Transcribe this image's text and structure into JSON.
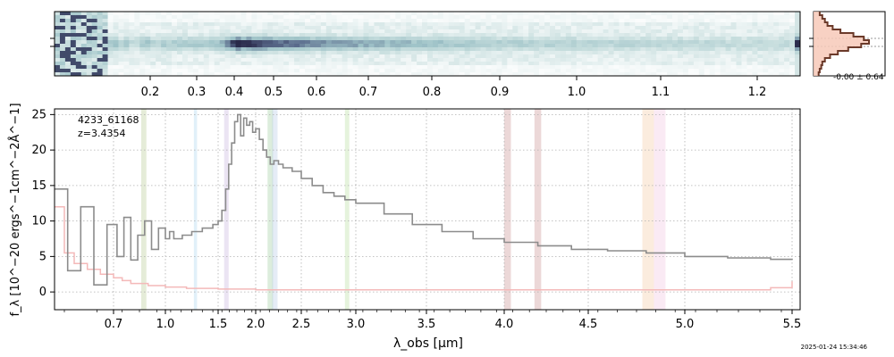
{
  "timestamp": "2025-01-24 15:34:46",
  "chart_data": [
    {
      "type": "heatmap",
      "panel": "2D spectrum",
      "colormap": [
        "#ffffff",
        "#c9dfdf",
        "#9fc3c8",
        "#5a6b8c",
        "#1c1838"
      ],
      "trace_rows": "center",
      "top_axis_ticks": [
        "0.2",
        "0.3",
        "0.4",
        "0.5",
        "0.6",
        "0.7",
        "0.8",
        "0.9",
        "1.0",
        "1.1",
        "1.2"
      ]
    },
    {
      "type": "line",
      "panel": "spatial profile",
      "annotation": "-0.00 ± 0.64",
      "colors": {
        "fill": "#f7c9b8",
        "line": "#6b3a2a"
      }
    },
    {
      "type": "line",
      "panel": "1D spectrum",
      "object_id": "4233_61168",
      "redshift_label": "z=3.4354",
      "xlabel": "λ_obs [μm]",
      "ylabel": "f_λ [10^−20 ergs^−1cm^−2Å^−1]",
      "x_scale": "nonlinear (pixel grid)",
      "x_ticks": [
        "0.7",
        "1.0",
        "1.5",
        "2.0",
        "2.5",
        "3.0",
        "3.5",
        "4.0",
        "4.5",
        "5.0",
        "5.5"
      ],
      "x_tick_values": [
        0.7,
        1.0,
        1.5,
        2.0,
        2.5,
        3.0,
        3.5,
        4.0,
        4.5,
        5.0,
        5.5
      ],
      "xlim": [
        0.52,
        5.52
      ],
      "y_ticks": [
        "0",
        "5",
        "10",
        "15",
        "20",
        "25"
      ],
      "ylim": [
        -2.5,
        25.8
      ],
      "grid": true,
      "series": [
        {
          "role": "flux",
          "color": "#8c8c8c",
          "x": [
            0.52,
            0.56,
            0.6,
            0.64,
            0.68,
            0.72,
            0.76,
            0.8,
            0.84,
            0.88,
            0.92,
            0.96,
            1.0,
            1.04,
            1.08,
            1.12,
            1.16,
            1.2,
            1.25,
            1.3,
            1.35,
            1.4,
            1.45,
            1.5,
            1.55,
            1.6,
            1.64,
            1.68,
            1.72,
            1.76,
            1.8,
            1.84,
            1.88,
            1.92,
            1.96,
            2.0,
            2.04,
            2.08,
            2.12,
            2.16,
            2.2,
            2.25,
            2.3,
            2.4,
            2.5,
            2.6,
            2.7,
            2.8,
            2.9,
            3.0,
            3.2,
            3.4,
            3.6,
            3.8,
            4.0,
            4.2,
            4.4,
            4.6,
            4.8,
            5.0,
            5.2,
            5.4,
            5.5
          ],
          "y": [
            14.5,
            3.0,
            12.0,
            1.0,
            9.5,
            5.0,
            10.5,
            4.5,
            8.0,
            10.0,
            6.0,
            9.0,
            7.5,
            8.5,
            7.5,
            7.5,
            8.0,
            8.0,
            8.5,
            8.5,
            9.0,
            9.0,
            9.5,
            10.0,
            11.5,
            14.5,
            18.0,
            21.0,
            24.0,
            25.0,
            22.0,
            24.5,
            23.5,
            24.0,
            22.5,
            23.0,
            21.5,
            20.0,
            19.0,
            18.0,
            18.5,
            18.0,
            17.5,
            17.0,
            16.0,
            15.0,
            14.0,
            13.5,
            13.0,
            12.5,
            11.0,
            9.5,
            8.5,
            7.5,
            7.0,
            6.5,
            6.0,
            5.8,
            5.5,
            5.0,
            4.8,
            4.6,
            4.5
          ]
        },
        {
          "role": "uncertainty",
          "color": "#f4b9b9",
          "x": [
            0.52,
            0.55,
            0.58,
            0.62,
            0.66,
            0.7,
            0.75,
            0.8,
            0.9,
            1.0,
            1.2,
            1.5,
            2.0,
            3.0,
            4.0,
            5.0,
            5.4,
            5.5
          ],
          "y": [
            12.0,
            5.5,
            4.0,
            3.2,
            2.5,
            2.0,
            1.6,
            1.2,
            0.9,
            0.7,
            0.5,
            0.4,
            0.3,
            0.3,
            0.3,
            0.3,
            0.6,
            1.5
          ]
        }
      ],
      "shaded_bands": [
        {
          "x": [
            0.86,
            0.89
          ],
          "color": "#b5c98f"
        },
        {
          "x": [
            1.27,
            1.3
          ],
          "color": "#a9d3ee"
        },
        {
          "x": [
            1.58,
            1.64
          ],
          "color": "#c6b2dc"
        },
        {
          "x": [
            2.13,
            2.19
          ],
          "color": "#9ccb9c"
        },
        {
          "x": [
            2.18,
            2.24
          ],
          "color": "#b5c9e6"
        },
        {
          "x": [
            2.9,
            2.94
          ],
          "color": "#b5dc9c"
        },
        {
          "x": [
            4.0,
            4.04
          ],
          "color": "#c98f8f"
        },
        {
          "x": [
            4.18,
            4.22
          ],
          "color": "#c98f8f"
        },
        {
          "x": [
            4.78,
            4.84
          ],
          "color": "#f4c9a0"
        },
        {
          "x": [
            4.84,
            4.9
          ],
          "color": "#f0c4e0"
        }
      ]
    }
  ]
}
